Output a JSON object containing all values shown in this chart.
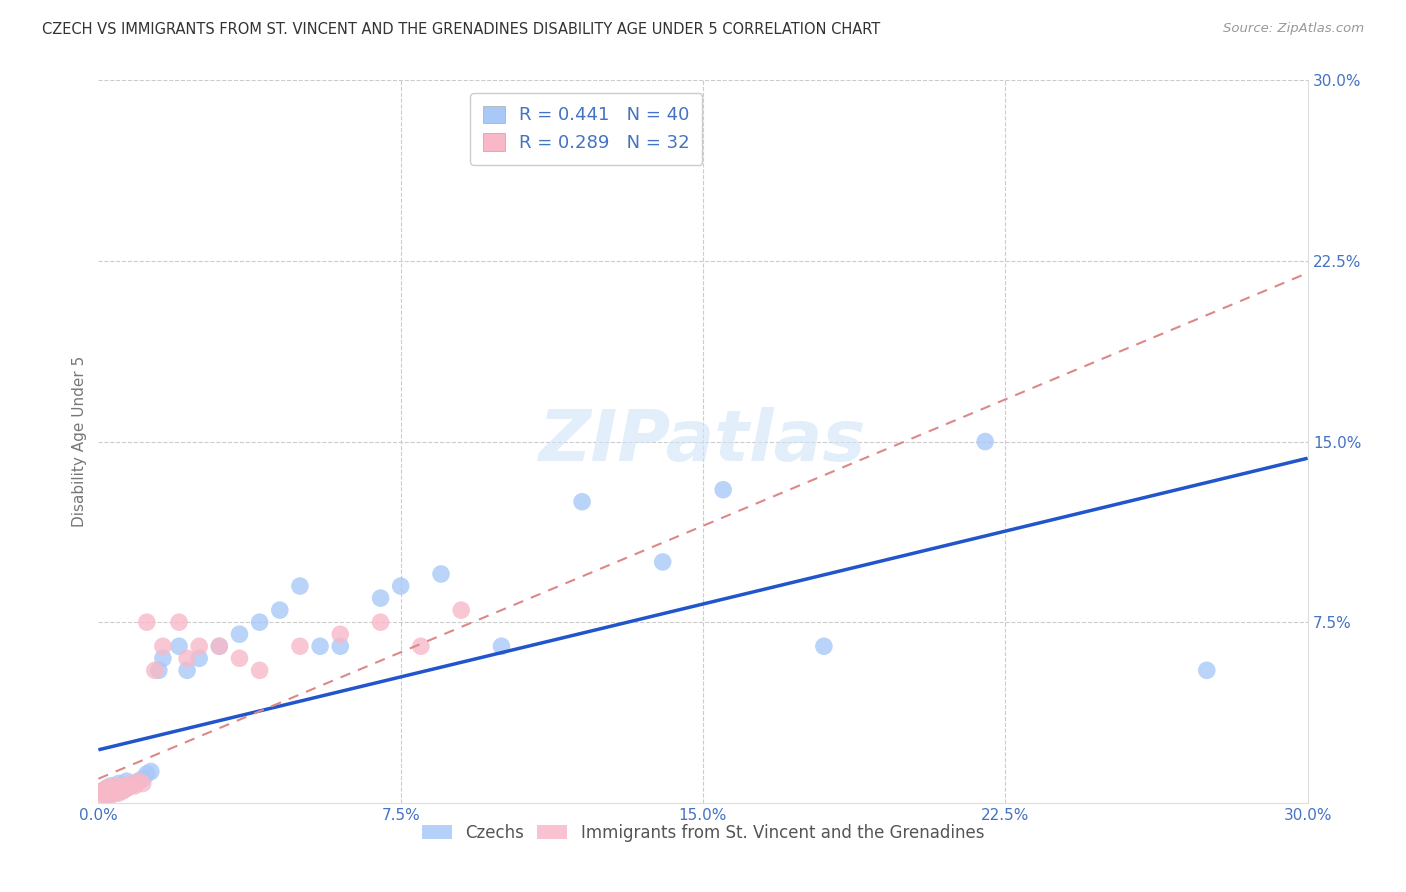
{
  "title": "CZECH VS IMMIGRANTS FROM ST. VINCENT AND THE GRENADINES DISABILITY AGE UNDER 5 CORRELATION CHART",
  "source": "Source: ZipAtlas.com",
  "ylabel": "Disability Age Under 5",
  "xlim": [
    0.0,
    0.3
  ],
  "ylim": [
    0.0,
    0.3
  ],
  "xtick_vals": [
    0.0,
    0.075,
    0.15,
    0.225,
    0.3
  ],
  "ytick_vals": [
    0.075,
    0.15,
    0.225,
    0.3
  ],
  "czech_color": "#a8c8f8",
  "svg_color": "#f8b8c8",
  "czech_R": 0.441,
  "czech_N": 40,
  "svg_R": 0.289,
  "svg_N": 32,
  "czech_line_color": "#2255cc",
  "svg_line_color": "#dd8888",
  "tick_color": "#4472c4",
  "legend_label_czech": "Czechs",
  "legend_label_svg": "Immigrants from St. Vincent and the Grenadines",
  "watermark_color": "#d0e4f8",
  "grid_color": "#cccccc",
  "czech_x": [
    0.001,
    0.002,
    0.002,
    0.003,
    0.003,
    0.004,
    0.004,
    0.005,
    0.005,
    0.006,
    0.007,
    0.007,
    0.008,
    0.009,
    0.01,
    0.011,
    0.012,
    0.013,
    0.015,
    0.016,
    0.02,
    0.022,
    0.025,
    0.03,
    0.035,
    0.04,
    0.045,
    0.05,
    0.055,
    0.06,
    0.07,
    0.075,
    0.085,
    0.1,
    0.12,
    0.14,
    0.155,
    0.18,
    0.22,
    0.275
  ],
  "czech_y": [
    0.005,
    0.003,
    0.006,
    0.004,
    0.007,
    0.005,
    0.004,
    0.008,
    0.006,
    0.005,
    0.006,
    0.009,
    0.007,
    0.008,
    0.009,
    0.01,
    0.012,
    0.013,
    0.055,
    0.06,
    0.065,
    0.055,
    0.06,
    0.065,
    0.07,
    0.075,
    0.08,
    0.09,
    0.065,
    0.065,
    0.085,
    0.09,
    0.095,
    0.065,
    0.125,
    0.1,
    0.13,
    0.065,
    0.15,
    0.055
  ],
  "svg_x": [
    0.001,
    0.001,
    0.001,
    0.002,
    0.002,
    0.003,
    0.003,
    0.004,
    0.004,
    0.005,
    0.005,
    0.006,
    0.006,
    0.007,
    0.008,
    0.009,
    0.01,
    0.011,
    0.012,
    0.014,
    0.016,
    0.02,
    0.022,
    0.025,
    0.03,
    0.035,
    0.04,
    0.05,
    0.06,
    0.07,
    0.08,
    0.09
  ],
  "svg_y": [
    0.003,
    0.004,
    0.005,
    0.004,
    0.006,
    0.003,
    0.006,
    0.005,
    0.007,
    0.004,
    0.006,
    0.005,
    0.007,
    0.006,
    0.008,
    0.007,
    0.009,
    0.008,
    0.075,
    0.055,
    0.065,
    0.075,
    0.06,
    0.065,
    0.065,
    0.06,
    0.055,
    0.065,
    0.07,
    0.075,
    0.065,
    0.08
  ]
}
